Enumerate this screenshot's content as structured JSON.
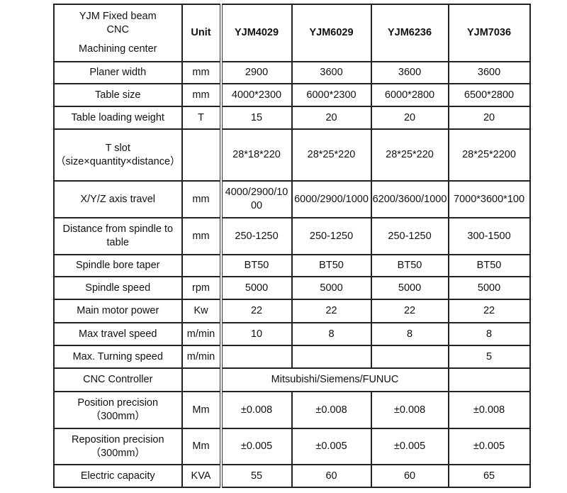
{
  "header": {
    "title_lines": [
      "YJM Fixed beam",
      "CNC",
      "Machining center"
    ],
    "unit": "Unit",
    "models": [
      "YJM4029",
      "YJM6029",
      "YJM6236",
      "YJM7036"
    ]
  },
  "rows": [
    {
      "label": "Planer width",
      "unit": "mm",
      "values": [
        "2900",
        "3600",
        "3600",
        "3600"
      ]
    },
    {
      "label": "Table size",
      "unit": "mm",
      "values": [
        "4000*2300",
        "6000*2300",
        "6000*2800",
        "6500*2800"
      ]
    },
    {
      "label": "Table loading weight",
      "unit": "T",
      "values": [
        "15",
        "20",
        "20",
        "20"
      ]
    },
    {
      "label": "T slot （size×quantity×distance）",
      "unit": "",
      "values": [
        "28*18*220",
        "28*25*220",
        "28*25*220",
        "28*25*2200"
      ]
    },
    {
      "label": "X/Y/Z axis travel",
      "unit": "mm",
      "values": [
        "4000/2900/1000",
        "6000/2900/1000",
        "6200/3600/1000",
        "7000*3600*100"
      ]
    },
    {
      "label": "Distance from spindle to table",
      "unit": "mm",
      "values": [
        "250-1250",
        "250-1250",
        "250-1250",
        "300-1500"
      ]
    },
    {
      "label": "Spindle bore taper",
      "unit": "",
      "values": [
        "BT50",
        "BT50",
        "BT50",
        "BT50"
      ]
    },
    {
      "label": "Spindle speed",
      "unit": "rpm",
      "values": [
        "5000",
        "5000",
        "5000",
        "5000"
      ]
    },
    {
      "label": "Main motor power",
      "unit": "Kw",
      "values": [
        "22",
        "22",
        "22",
        "22"
      ]
    },
    {
      "label": "Max travel speed",
      "unit": "m/min",
      "values": [
        "10",
        "8",
        "8",
        "8"
      ]
    },
    {
      "label": "Max. Turning speed",
      "unit": "m/min",
      "values": [
        "",
        "",
        "",
        "5"
      ]
    },
    {
      "label": "CNC Controller",
      "unit": "",
      "merged_value": "Mitsubishi/Siemens/FUNUC",
      "last_value": ""
    },
    {
      "label": "Position precision （300mm）",
      "unit": "Mm",
      "values": [
        "±0.008",
        "±0.008",
        "±0.008",
        "±0.008"
      ]
    },
    {
      "label": "Reposition precision （300mm）",
      "unit": "Mm",
      "values": [
        "±0.005",
        "±0.005",
        "±0.005",
        "±0.005"
      ]
    },
    {
      "label": "Electric capacity",
      "unit": "KVA",
      "values": [
        "55",
        "60",
        "60",
        "65"
      ]
    }
  ]
}
